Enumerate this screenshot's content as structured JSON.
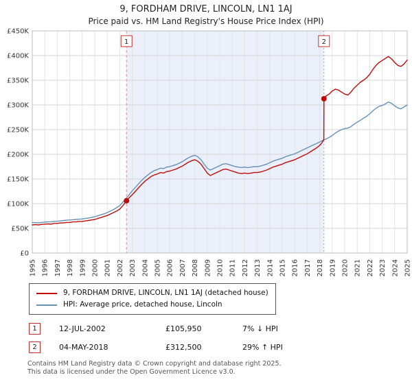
{
  "title": "9, FORDHAM DRIVE, LINCOLN, LN1 1AJ",
  "subtitle": "Price paid vs. HM Land Registry's House Price Index (HPI)",
  "legend": {
    "items": [
      {
        "label": "9, FORDHAM DRIVE, LINCOLN, LN1 1AJ (detached house)",
        "color": "#c00a0a"
      },
      {
        "label": "HPI: Average price, detached house, Lincoln",
        "color": "#6591b5"
      }
    ]
  },
  "sales": [
    {
      "marker": "1",
      "date": "12-JUL-2002",
      "price": "£105,950",
      "hpi_diff": "7% ↓ HPI"
    },
    {
      "marker": "2",
      "date": "04-MAY-2018",
      "price": "£312,500",
      "hpi_diff": "29% ↑ HPI"
    }
  ],
  "footer": {
    "line1": "Contains HM Land Registry data © Crown copyright and database right 2025.",
    "line2": "This data is licensed under the Open Government Licence v3.0."
  },
  "chart_data": {
    "type": "line",
    "title": "9, FORDHAM DRIVE, LINCOLN, LN1 1AJ — Price paid vs. HPI",
    "unit": "GBP thousands",
    "xlim": [
      1995,
      2025
    ],
    "ylim": [
      0,
      450
    ],
    "y_step": 50,
    "grid": true,
    "legend_position": "bottom",
    "y_ticks": [
      "£0",
      "£50K",
      "£100K",
      "£150K",
      "£200K",
      "£250K",
      "£300K",
      "£350K",
      "£400K",
      "£450K"
    ],
    "x_ticks": [
      "1995",
      "1996",
      "1997",
      "1998",
      "1999",
      "2000",
      "2001",
      "2002",
      "2003",
      "2004",
      "2005",
      "2006",
      "2007",
      "2008",
      "2009",
      "2010",
      "2011",
      "2012",
      "2013",
      "2014",
      "2015",
      "2016",
      "2017",
      "2018",
      "2019",
      "2020",
      "2021",
      "2022",
      "2023",
      "2024",
      "2025"
    ],
    "colors": {
      "property": "#c00a0a",
      "hpi": "#6591b5",
      "shade": "#eaeff9",
      "grid_h": "#d6d6d6",
      "grid_v": "#e3e3e3",
      "border": "#bbbbbb",
      "dot": "#c00a0a",
      "marker_box_border": "#c03030"
    },
    "markers": [
      {
        "label": "1",
        "x": 2002.54,
        "y": 105.95,
        "price_label": "£105,950",
        "dash": "4 3",
        "line_color": "#dd8f8f"
      },
      {
        "label": "2",
        "x": 2018.34,
        "y": 312.5,
        "price_label": "£312,500",
        "dash": "2 3",
        "line_color": "#93a3d2"
      }
    ],
    "series": [
      {
        "name": "HPI: Average price, detached house, Lincoln",
        "color": "#6591b5",
        "points": [
          [
            1995,
            62
          ],
          [
            1995.25,
            61.5
          ],
          [
            1995.5,
            61
          ],
          [
            1995.75,
            62
          ],
          [
            1996,
            62.5
          ],
          [
            1996.25,
            63
          ],
          [
            1996.5,
            63
          ],
          [
            1996.75,
            64
          ],
          [
            1997,
            64.5
          ],
          [
            1997.25,
            65
          ],
          [
            1997.5,
            66
          ],
          [
            1997.75,
            66.5
          ],
          [
            1998,
            67
          ],
          [
            1998.25,
            67.5
          ],
          [
            1998.5,
            68
          ],
          [
            1998.75,
            68.5
          ],
          [
            1999,
            69
          ],
          [
            1999.25,
            70
          ],
          [
            1999.5,
            71
          ],
          [
            1999.75,
            72
          ],
          [
            2000,
            73.5
          ],
          [
            2000.25,
            75.5
          ],
          [
            2000.5,
            77.5
          ],
          [
            2000.75,
            79.5
          ],
          [
            2001,
            82
          ],
          [
            2001.25,
            85
          ],
          [
            2001.5,
            88
          ],
          [
            2001.75,
            92
          ],
          [
            2002,
            96
          ],
          [
            2002.25,
            103
          ],
          [
            2002.5,
            110
          ],
          [
            2002.75,
            118
          ],
          [
            2003,
            126
          ],
          [
            2003.25,
            133
          ],
          [
            2003.5,
            140
          ],
          [
            2003.75,
            147
          ],
          [
            2004,
            153
          ],
          [
            2004.25,
            158
          ],
          [
            2004.5,
            163
          ],
          [
            2004.75,
            167
          ],
          [
            2005,
            169
          ],
          [
            2005.25,
            172
          ],
          [
            2005.5,
            171
          ],
          [
            2005.75,
            174
          ],
          [
            2006,
            175
          ],
          [
            2006.25,
            177
          ],
          [
            2006.5,
            179
          ],
          [
            2006.75,
            182
          ],
          [
            2007,
            185
          ],
          [
            2007.25,
            189
          ],
          [
            2007.5,
            193
          ],
          [
            2007.75,
            196
          ],
          [
            2008,
            198
          ],
          [
            2008.25,
            195
          ],
          [
            2008.5,
            189
          ],
          [
            2008.75,
            180
          ],
          [
            2009,
            172
          ],
          [
            2009.25,
            168
          ],
          [
            2009.5,
            171
          ],
          [
            2009.75,
            174
          ],
          [
            2010,
            177
          ],
          [
            2010.25,
            180
          ],
          [
            2010.5,
            181
          ],
          [
            2010.75,
            179
          ],
          [
            2011,
            177
          ],
          [
            2011.25,
            175
          ],
          [
            2011.5,
            174
          ],
          [
            2011.75,
            173
          ],
          [
            2012,
            174
          ],
          [
            2012.25,
            173
          ],
          [
            2012.5,
            174
          ],
          [
            2012.75,
            175
          ],
          [
            2013,
            175
          ],
          [
            2013.25,
            176
          ],
          [
            2013.5,
            178
          ],
          [
            2013.75,
            180
          ],
          [
            2014,
            183
          ],
          [
            2014.25,
            186
          ],
          [
            2014.5,
            188
          ],
          [
            2014.75,
            190
          ],
          [
            2015,
            192
          ],
          [
            2015.25,
            195
          ],
          [
            2015.5,
            197
          ],
          [
            2015.75,
            199
          ],
          [
            2016,
            201
          ],
          [
            2016.25,
            204
          ],
          [
            2016.5,
            207
          ],
          [
            2016.75,
            210
          ],
          [
            2017,
            213
          ],
          [
            2017.25,
            216
          ],
          [
            2017.5,
            219
          ],
          [
            2017.75,
            222
          ],
          [
            2018,
            225
          ],
          [
            2018.25,
            228
          ],
          [
            2018.5,
            231
          ],
          [
            2018.75,
            234
          ],
          [
            2019,
            238
          ],
          [
            2019.25,
            243
          ],
          [
            2019.5,
            247
          ],
          [
            2019.75,
            250
          ],
          [
            2020,
            252
          ],
          [
            2020.25,
            253
          ],
          [
            2020.5,
            256
          ],
          [
            2020.75,
            261
          ],
          [
            2021,
            265
          ],
          [
            2021.25,
            269
          ],
          [
            2021.5,
            273
          ],
          [
            2021.75,
            277
          ],
          [
            2022,
            282
          ],
          [
            2022.25,
            288
          ],
          [
            2022.5,
            293
          ],
          [
            2022.75,
            297
          ],
          [
            2023,
            299
          ],
          [
            2023.25,
            302
          ],
          [
            2023.5,
            306
          ],
          [
            2023.75,
            303
          ],
          [
            2024,
            298
          ],
          [
            2024.25,
            294
          ],
          [
            2024.5,
            292
          ],
          [
            2024.75,
            296
          ],
          [
            2025,
            300
          ]
        ]
      },
      {
        "name": "9, FORDHAM DRIVE, LINCOLN, LN1 1AJ (detached house)",
        "color": "#c00a0a",
        "points": [
          [
            1995,
            57
          ],
          [
            1995.25,
            57.5
          ],
          [
            1995.5,
            57
          ],
          [
            1995.75,
            58
          ],
          [
            1996,
            58.5
          ],
          [
            1996.25,
            59
          ],
          [
            1996.5,
            58.5
          ],
          [
            1996.75,
            60
          ],
          [
            1997,
            60
          ],
          [
            1997.25,
            61
          ],
          [
            1997.5,
            61
          ],
          [
            1997.75,
            62
          ],
          [
            1998,
            62
          ],
          [
            1998.25,
            63
          ],
          [
            1998.5,
            63
          ],
          [
            1998.75,
            64
          ],
          [
            1999,
            64
          ],
          [
            1999.25,
            65
          ],
          [
            1999.5,
            66
          ],
          [
            1999.75,
            67
          ],
          [
            2000,
            68
          ],
          [
            2000.25,
            70
          ],
          [
            2000.5,
            72
          ],
          [
            2000.75,
            74
          ],
          [
            2001,
            76
          ],
          [
            2001.25,
            79
          ],
          [
            2001.5,
            82
          ],
          [
            2001.75,
            85
          ],
          [
            2002,
            89
          ],
          [
            2002.25,
            96
          ],
          [
            2002.54,
            105.95
          ],
          [
            2002.75,
            112
          ],
          [
            2003,
            118
          ],
          [
            2003.25,
            125
          ],
          [
            2003.5,
            132
          ],
          [
            2003.75,
            139
          ],
          [
            2004,
            145
          ],
          [
            2004.25,
            150
          ],
          [
            2004.5,
            155
          ],
          [
            2004.75,
            158
          ],
          [
            2005,
            160
          ],
          [
            2005.25,
            163
          ],
          [
            2005.5,
            162
          ],
          [
            2005.75,
            165
          ],
          [
            2006,
            166
          ],
          [
            2006.25,
            168
          ],
          [
            2006.5,
            170
          ],
          [
            2006.75,
            173
          ],
          [
            2007,
            176
          ],
          [
            2007.25,
            180
          ],
          [
            2007.5,
            184
          ],
          [
            2007.75,
            187
          ],
          [
            2008,
            189
          ],
          [
            2008.25,
            186
          ],
          [
            2008.5,
            180
          ],
          [
            2008.75,
            171
          ],
          [
            2009,
            162
          ],
          [
            2009.25,
            157
          ],
          [
            2009.5,
            160
          ],
          [
            2009.75,
            163
          ],
          [
            2010,
            166
          ],
          [
            2010.25,
            169
          ],
          [
            2010.5,
            170
          ],
          [
            2010.75,
            168
          ],
          [
            2011,
            166
          ],
          [
            2011.25,
            164
          ],
          [
            2011.5,
            162
          ],
          [
            2011.75,
            161
          ],
          [
            2012,
            162
          ],
          [
            2012.25,
            161
          ],
          [
            2012.5,
            162
          ],
          [
            2012.75,
            163
          ],
          [
            2013,
            163
          ],
          [
            2013.25,
            164
          ],
          [
            2013.5,
            166
          ],
          [
            2013.75,
            168
          ],
          [
            2014,
            171
          ],
          [
            2014.25,
            174
          ],
          [
            2014.5,
            176
          ],
          [
            2014.75,
            178
          ],
          [
            2015,
            180
          ],
          [
            2015.25,
            183
          ],
          [
            2015.5,
            185
          ],
          [
            2015.75,
            187
          ],
          [
            2016,
            189
          ],
          [
            2016.25,
            192
          ],
          [
            2016.5,
            195
          ],
          [
            2016.75,
            198
          ],
          [
            2017,
            201
          ],
          [
            2017.25,
            205
          ],
          [
            2017.5,
            209
          ],
          [
            2017.75,
            213
          ],
          [
            2018,
            218
          ],
          [
            2018.2,
            224
          ],
          [
            2018.33,
            230
          ],
          [
            2018.34,
            312.5
          ],
          [
            2018.5,
            318
          ],
          [
            2018.75,
            322
          ],
          [
            2019,
            328
          ],
          [
            2019.25,
            332
          ],
          [
            2019.5,
            330
          ],
          [
            2019.75,
            326
          ],
          [
            2020,
            322
          ],
          [
            2020.25,
            320
          ],
          [
            2020.5,
            326
          ],
          [
            2020.75,
            334
          ],
          [
            2021,
            340
          ],
          [
            2021.25,
            346
          ],
          [
            2021.5,
            350
          ],
          [
            2021.75,
            355
          ],
          [
            2022,
            362
          ],
          [
            2022.25,
            372
          ],
          [
            2022.5,
            380
          ],
          [
            2022.75,
            386
          ],
          [
            2023,
            390
          ],
          [
            2023.25,
            394
          ],
          [
            2023.5,
            398
          ],
          [
            2023.75,
            393
          ],
          [
            2024,
            386
          ],
          [
            2024.25,
            380
          ],
          [
            2024.5,
            378
          ],
          [
            2024.75,
            383
          ],
          [
            2025,
            391
          ]
        ]
      }
    ]
  }
}
